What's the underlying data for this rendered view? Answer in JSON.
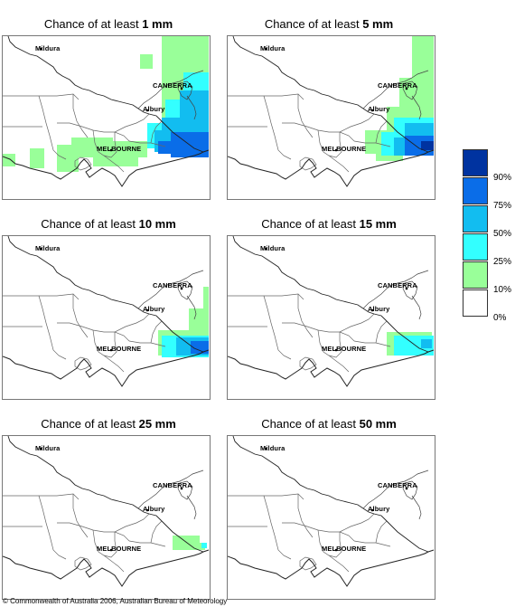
{
  "panels": [
    {
      "title_prefix": "Chance of at least ",
      "amount": "1 mm",
      "level": 5
    },
    {
      "title_prefix": "Chance of at least ",
      "amount": "5 mm",
      "level": 4
    },
    {
      "title_prefix": "Chance of at least ",
      "amount": "10 mm",
      "level": 3
    },
    {
      "title_prefix": "Chance of at least ",
      "amount": "15 mm",
      "level": 2
    },
    {
      "title_prefix": "Chance of at least ",
      "amount": "25 mm",
      "level": 1
    },
    {
      "title_prefix": "Chance of at least ",
      "amount": "50 mm",
      "level": 0
    }
  ],
  "cities": {
    "mildura": "Mildura",
    "canberra": "CANBERRA",
    "albury": "Albury",
    "melbourne": "MELBOURNE"
  },
  "legend": {
    "labels": [
      "90%",
      "75%",
      "50%",
      "25%",
      "10%",
      "0%"
    ],
    "colors": [
      "#0033a0",
      "#0a6de8",
      "#12bdf0",
      "#33ffff",
      "#99ff99",
      "#ffffff"
    ]
  },
  "copyright": "© Commonwealth of Australia 2006, Australian Bureau of Meteorology"
}
